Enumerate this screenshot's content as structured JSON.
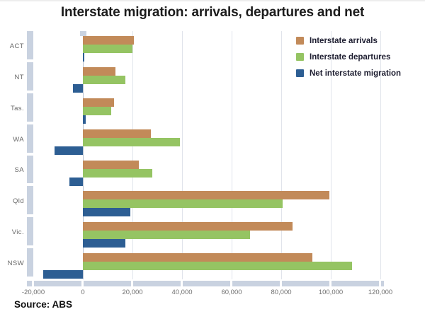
{
  "chart_data": {
    "type": "bar",
    "orientation": "horizontal",
    "title": "Interstate migration: arrivals, departures and net",
    "source": "Source: ABS",
    "categories": [
      "ACT",
      "NT",
      "Tas.",
      "WA",
      "SA",
      "Qld",
      "Vic.",
      "NSW"
    ],
    "series": [
      {
        "name": "Interstate arrivals",
        "color": "#c28a59",
        "values": [
          20500,
          13000,
          12500,
          27500,
          22500,
          99500,
          84500,
          92500
        ]
      },
      {
        "name": "Interstate departures",
        "color": "#95c463",
        "values": [
          20000,
          17000,
          11500,
          39000,
          28000,
          80500,
          67500,
          108500
        ]
      },
      {
        "name": "Net interstate migration",
        "color": "#2d5e93",
        "values": [
          500,
          -4000,
          1000,
          -11500,
          -5500,
          19000,
          17000,
          -16000
        ]
      }
    ],
    "x_ticks": [
      {
        "value": -20000,
        "label": "-20,000"
      },
      {
        "value": 0,
        "label": "0"
      },
      {
        "value": 20000,
        "label": "20,000"
      },
      {
        "value": 40000,
        "label": "40,000"
      },
      {
        "value": 60000,
        "label": "60,000"
      },
      {
        "value": 80000,
        "label": "80,000"
      },
      {
        "value": 100000,
        "label": "100,000"
      },
      {
        "value": 120000,
        "label": "120,000"
      }
    ],
    "xlim": [
      -20000,
      120000
    ],
    "grid": true,
    "legend_position": "top-right",
    "colors": {
      "axis_bar": "#c9d2e0",
      "gridline": "#e0e4eb",
      "zero_line": "#b9c2d0",
      "title_text": "#1c1c1c",
      "tick_text": "#6e6e6e"
    }
  }
}
